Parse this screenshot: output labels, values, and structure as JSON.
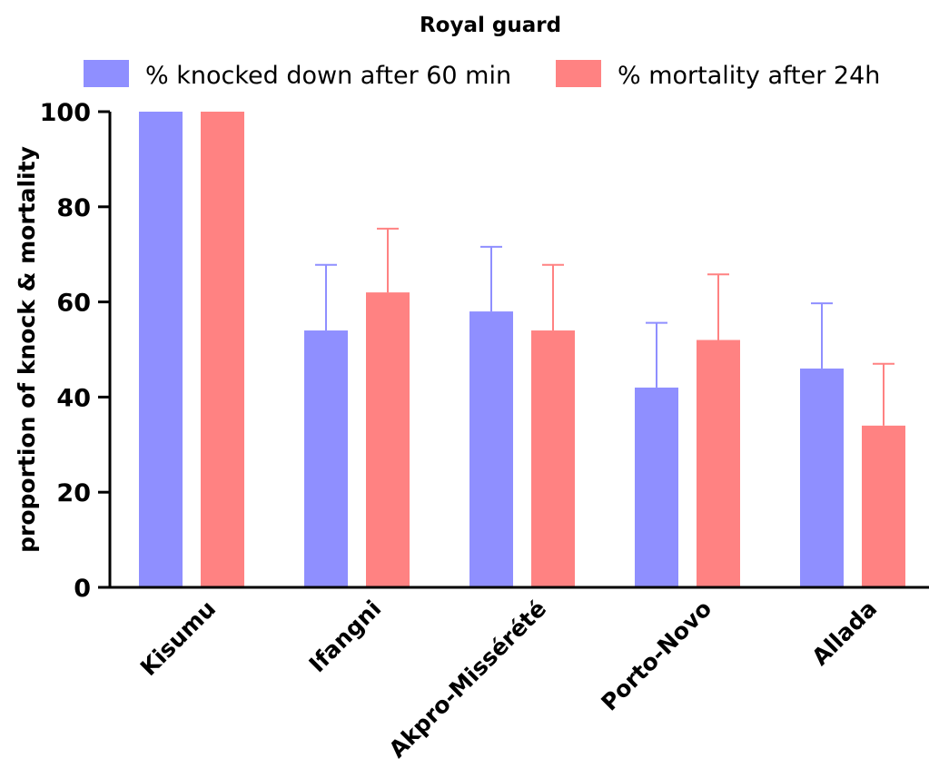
{
  "chart_data": {
    "type": "bar",
    "title": "Royal guard",
    "ylabel": "proportion of knock & mortality",
    "xlabel": "",
    "ylim": [
      0,
      100
    ],
    "yticks": [
      0,
      20,
      40,
      60,
      80,
      100
    ],
    "categories": [
      "Kisumu",
      "Ifangni",
      "Akpro-Missérété",
      "Porto-Novo",
      "Allada"
    ],
    "series": [
      {
        "name": "% knocked down after 60 min",
        "color": "#8f8fff",
        "values": [
          100,
          54,
          58,
          42,
          46
        ],
        "error_upper": [
          0,
          13.8,
          13.6,
          13.6,
          13.7
        ]
      },
      {
        "name": "% mortality after 24h",
        "color": "#ff8282",
        "values": [
          100,
          62,
          54,
          52,
          34
        ],
        "error_upper": [
          0,
          13.4,
          13.8,
          13.8,
          13.0
        ]
      }
    ],
    "legend": "top",
    "grid": false
  }
}
